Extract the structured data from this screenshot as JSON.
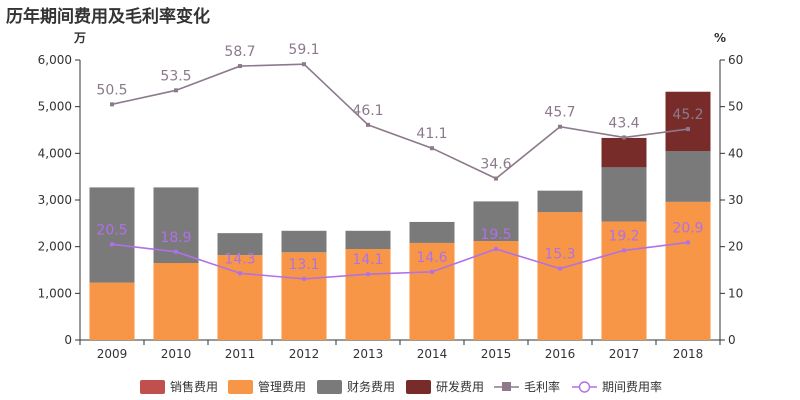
{
  "title": "历年期间费用及毛利率变化",
  "colors": {
    "sales": "#c0504d",
    "admin": "#f79646",
    "finance": "#7a7a7a",
    "rnd": "#772c2a",
    "gross_margin": "#8c7a8c",
    "period_rate": "#b070e8"
  },
  "chart_data": {
    "type": "bar",
    "stacked": true,
    "categories": [
      "2009",
      "2010",
      "2011",
      "2012",
      "2013",
      "2014",
      "2015",
      "2016",
      "2017",
      "2018"
    ],
    "left_axis": {
      "unit": "万",
      "ylim": [
        0,
        6000
      ],
      "ticks": [
        "0",
        "1,000",
        "2,000",
        "3,000",
        "4,000",
        "5,000",
        "6,000"
      ]
    },
    "right_axis": {
      "unit": "%",
      "ylim": [
        0,
        60
      ],
      "ticks": [
        "0",
        "10",
        "20",
        "30",
        "40",
        "50",
        "60"
      ]
    },
    "series": [
      {
        "name": "销售费用",
        "type": "bar",
        "color_key": "sales",
        "values": [
          0,
          0,
          0,
          0,
          0,
          0,
          0,
          0,
          0,
          0
        ]
      },
      {
        "name": "管理费用",
        "type": "bar",
        "color_key": "admin",
        "values": [
          1230,
          1650,
          1820,
          1880,
          1950,
          2080,
          2120,
          2740,
          2540,
          2960
        ]
      },
      {
        "name": "财务费用",
        "type": "bar",
        "color_key": "finance",
        "values": [
          2040,
          1620,
          470,
          460,
          390,
          450,
          850,
          460,
          1160,
          1090
        ]
      },
      {
        "name": "研发费用",
        "type": "bar",
        "color_key": "rnd",
        "values": [
          0,
          0,
          0,
          0,
          0,
          0,
          0,
          0,
          630,
          1270
        ]
      },
      {
        "name": "毛利率",
        "type": "line",
        "axis": "right",
        "color_key": "gross_margin",
        "values": [
          50.5,
          53.5,
          58.7,
          59.1,
          46.1,
          41.1,
          34.6,
          45.7,
          43.4,
          45.2
        ],
        "labels": [
          "50.5",
          "53.5",
          "58.7",
          "59.1",
          "46.1",
          "41.1",
          "34.6",
          "45.7",
          "43.4",
          "45.2"
        ]
      },
      {
        "name": "期间费用率",
        "type": "line",
        "axis": "right",
        "color_key": "period_rate",
        "values": [
          20.5,
          18.9,
          14.3,
          13.1,
          14.1,
          14.6,
          19.5,
          15.3,
          19.2,
          20.9
        ],
        "labels": [
          "20.5",
          "18.9",
          "14.3",
          "13.1",
          "14.1",
          "14.6",
          "19.5",
          "15.3",
          "19.2",
          "20.9"
        ]
      }
    ],
    "legend_position": "bottom"
  }
}
